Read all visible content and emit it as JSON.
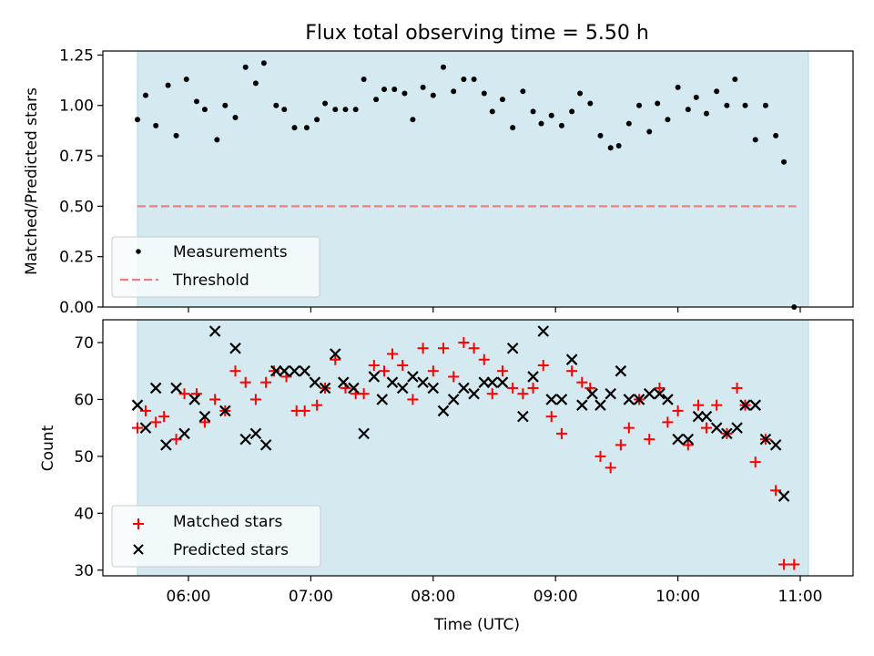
{
  "chart_data": [
    {
      "type": "scatter",
      "title": "Flux total observing time = 5.50 h",
      "xlabel": "",
      "ylabel": "Matched/Predicted stars",
      "ylim": [
        0,
        1.27
      ],
      "yticks": [
        "0.00",
        "0.25",
        "0.50",
        "0.75",
        "1.00",
        "1.25"
      ],
      "shaded_interval": [
        "05:35",
        "11:04"
      ],
      "shade_color": "#d4e9f0",
      "legend_position": "lower-left",
      "series": [
        {
          "name": "Measurements",
          "marker": "dot",
          "color": "#000000",
          "points": [
            [
              "05:35",
              0.93
            ],
            [
              "05:39",
              1.05
            ],
            [
              "05:44",
              0.9
            ],
            [
              "05:50",
              1.1
            ],
            [
              "05:54",
              0.85
            ],
            [
              "05:59",
              1.13
            ],
            [
              "06:04",
              1.02
            ],
            [
              "06:08",
              0.98
            ],
            [
              "06:14",
              0.83
            ],
            [
              "06:18",
              1.0
            ],
            [
              "06:23",
              0.94
            ],
            [
              "06:28",
              1.19
            ],
            [
              "06:33",
              1.11
            ],
            [
              "06:37",
              1.21
            ],
            [
              "06:43",
              1.0
            ],
            [
              "06:47",
              0.98
            ],
            [
              "06:52",
              0.89
            ],
            [
              "06:58",
              0.89
            ],
            [
              "07:03",
              0.93
            ],
            [
              "07:07",
              1.01
            ],
            [
              "07:12",
              0.98
            ],
            [
              "07:17",
              0.98
            ],
            [
              "07:22",
              0.98
            ],
            [
              "07:26",
              1.13
            ],
            [
              "07:32",
              1.03
            ],
            [
              "07:36",
              1.08
            ],
            [
              "07:41",
              1.08
            ],
            [
              "07:46",
              1.06
            ],
            [
              "07:50",
              0.93
            ],
            [
              "07:55",
              1.09
            ],
            [
              "08:00",
              1.05
            ],
            [
              "08:05",
              1.19
            ],
            [
              "08:10",
              1.07
            ],
            [
              "08:15",
              1.13
            ],
            [
              "08:20",
              1.13
            ],
            [
              "08:25",
              1.06
            ],
            [
              "08:29",
              0.97
            ],
            [
              "08:34",
              1.03
            ],
            [
              "08:39",
              0.89
            ],
            [
              "08:44",
              1.07
            ],
            [
              "08:49",
              0.97
            ],
            [
              "08:53",
              0.91
            ],
            [
              "08:58",
              0.95
            ],
            [
              "09:03",
              0.9
            ],
            [
              "09:08",
              0.97
            ],
            [
              "09:12",
              1.06
            ],
            [
              "09:17",
              1.01
            ],
            [
              "09:22",
              0.85
            ],
            [
              "09:27",
              0.79
            ],
            [
              "09:31",
              0.8
            ],
            [
              "09:36",
              0.91
            ],
            [
              "09:41",
              1.0
            ],
            [
              "09:46",
              0.87
            ],
            [
              "09:50",
              1.01
            ],
            [
              "09:55",
              0.93
            ],
            [
              "10:00",
              1.09
            ],
            [
              "10:05",
              0.98
            ],
            [
              "10:09",
              1.04
            ],
            [
              "10:14",
              0.96
            ],
            [
              "10:19",
              1.07
            ],
            [
              "10:24",
              1.0
            ],
            [
              "10:28",
              1.13
            ],
            [
              "10:33",
              1.0
            ],
            [
              "10:38",
              0.83
            ],
            [
              "10:43",
              1.0
            ],
            [
              "10:48",
              0.85
            ],
            [
              "10:52",
              0.72
            ],
            [
              "10:57",
              0.0
            ]
          ]
        },
        {
          "name": "Threshold",
          "marker": "dashed-line",
          "color": "#f08080",
          "points": [
            [
              "05:35",
              0.5
            ],
            [
              "10:58",
              0.5
            ]
          ]
        }
      ]
    },
    {
      "type": "scatter",
      "title": "",
      "xlabel": "Time (UTC)",
      "ylabel": "Count",
      "ylim": [
        29,
        74
      ],
      "yticks": [
        "30",
        "40",
        "50",
        "60",
        "70"
      ],
      "xticks": [
        "06:00",
        "07:00",
        "08:00",
        "09:00",
        "10:00",
        "11:00"
      ],
      "shaded_interval": [
        "05:35",
        "11:04"
      ],
      "shade_color": "#d4e9f0",
      "legend_position": "lower-left",
      "series": [
        {
          "name": "Matched stars",
          "marker": "plus",
          "color": "#ff0000",
          "points": [
            [
              "05:35",
              55
            ],
            [
              "05:39",
              58
            ],
            [
              "05:44",
              56
            ],
            [
              "05:48",
              57
            ],
            [
              "05:54",
              53
            ],
            [
              "05:58",
              61
            ],
            [
              "06:04",
              61
            ],
            [
              "06:08",
              56
            ],
            [
              "06:13",
              60
            ],
            [
              "06:18",
              58
            ],
            [
              "06:23",
              65
            ],
            [
              "06:28",
              63
            ],
            [
              "06:33",
              60
            ],
            [
              "06:38",
              63
            ],
            [
              "06:42",
              65
            ],
            [
              "06:48",
              64
            ],
            [
              "06:53",
              58
            ],
            [
              "06:57",
              58
            ],
            [
              "07:03",
              59
            ],
            [
              "07:07",
              62
            ],
            [
              "07:12",
              67
            ],
            [
              "07:17",
              62
            ],
            [
              "07:22",
              61
            ],
            [
              "07:26",
              61
            ],
            [
              "07:31",
              66
            ],
            [
              "07:36",
              65
            ],
            [
              "07:40",
              68
            ],
            [
              "07:45",
              66
            ],
            [
              "07:50",
              60
            ],
            [
              "07:55",
              69
            ],
            [
              "08:00",
              65
            ],
            [
              "08:05",
              69
            ],
            [
              "08:10",
              64
            ],
            [
              "08:15",
              70
            ],
            [
              "08:20",
              69
            ],
            [
              "08:25",
              67
            ],
            [
              "08:29",
              61
            ],
            [
              "08:34",
              65
            ],
            [
              "08:39",
              62
            ],
            [
              "08:44",
              61
            ],
            [
              "08:49",
              62
            ],
            [
              "08:54",
              66
            ],
            [
              "08:58",
              57
            ],
            [
              "09:03",
              54
            ],
            [
              "09:08",
              65
            ],
            [
              "09:13",
              63
            ],
            [
              "09:17",
              62
            ],
            [
              "09:22",
              50
            ],
            [
              "09:27",
              48
            ],
            [
              "09:32",
              52
            ],
            [
              "09:36",
              55
            ],
            [
              "09:41",
              60
            ],
            [
              "09:46",
              53
            ],
            [
              "09:51",
              62
            ],
            [
              "09:55",
              56
            ],
            [
              "10:00",
              58
            ],
            [
              "10:05",
              52
            ],
            [
              "10:10",
              59
            ],
            [
              "10:14",
              55
            ],
            [
              "10:19",
              59
            ],
            [
              "10:24",
              54
            ],
            [
              "10:29",
              62
            ],
            [
              "10:33",
              59
            ],
            [
              "10:38",
              49
            ],
            [
              "10:43",
              53
            ],
            [
              "10:48",
              44
            ],
            [
              "10:52",
              31
            ],
            [
              "10:57",
              31
            ]
          ]
        },
        {
          "name": "Predicted stars",
          "marker": "x",
          "color": "#000000",
          "points": [
            [
              "05:35",
              59
            ],
            [
              "05:39",
              55
            ],
            [
              "05:44",
              62
            ],
            [
              "05:49",
              52
            ],
            [
              "05:54",
              62
            ],
            [
              "05:58",
              54
            ],
            [
              "06:03",
              60
            ],
            [
              "06:08",
              57
            ],
            [
              "06:13",
              72
            ],
            [
              "06:18",
              58
            ],
            [
              "06:23",
              69
            ],
            [
              "06:28",
              53
            ],
            [
              "06:33",
              54
            ],
            [
              "06:38",
              52
            ],
            [
              "06:43",
              65
            ],
            [
              "06:47",
              65
            ],
            [
              "06:52",
              65
            ],
            [
              "06:57",
              65
            ],
            [
              "07:02",
              63
            ],
            [
              "07:07",
              62
            ],
            [
              "07:12",
              68
            ],
            [
              "07:16",
              63
            ],
            [
              "07:21",
              62
            ],
            [
              "07:26",
              54
            ],
            [
              "07:31",
              64
            ],
            [
              "07:35",
              60
            ],
            [
              "07:40",
              63
            ],
            [
              "07:45",
              62
            ],
            [
              "07:50",
              64
            ],
            [
              "07:55",
              63
            ],
            [
              "08:00",
              62
            ],
            [
              "08:05",
              58
            ],
            [
              "08:10",
              60
            ],
            [
              "08:15",
              62
            ],
            [
              "08:20",
              61
            ],
            [
              "08:25",
              63
            ],
            [
              "08:29",
              63
            ],
            [
              "08:34",
              63
            ],
            [
              "08:39",
              69
            ],
            [
              "08:44",
              57
            ],
            [
              "08:49",
              64
            ],
            [
              "08:54",
              72
            ],
            [
              "08:58",
              60
            ],
            [
              "09:03",
              60
            ],
            [
              "09:08",
              67
            ],
            [
              "09:13",
              59
            ],
            [
              "09:18",
              61
            ],
            [
              "09:22",
              59
            ],
            [
              "09:27",
              61
            ],
            [
              "09:32",
              65
            ],
            [
              "09:36",
              60
            ],
            [
              "09:41",
              60
            ],
            [
              "09:46",
              61
            ],
            [
              "09:51",
              61
            ],
            [
              "09:55",
              60
            ],
            [
              "10:00",
              53
            ],
            [
              "10:05",
              53
            ],
            [
              "10:10",
              57
            ],
            [
              "10:14",
              57
            ],
            [
              "10:19",
              55
            ],
            [
              "10:24",
              54
            ],
            [
              "10:29",
              55
            ],
            [
              "10:33",
              59
            ],
            [
              "10:38",
              59
            ],
            [
              "10:43",
              53
            ],
            [
              "10:48",
              52
            ],
            [
              "10:52",
              43
            ]
          ]
        }
      ]
    }
  ]
}
